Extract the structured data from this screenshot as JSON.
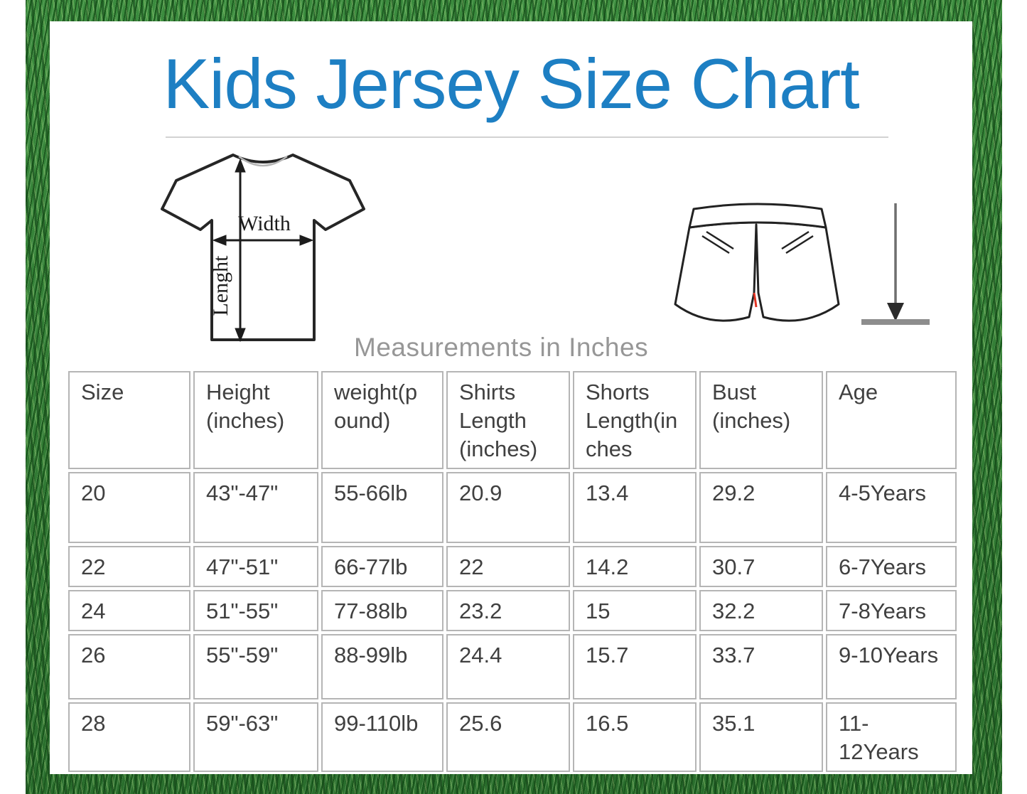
{
  "page": {
    "title": "Kids Jersey Size Chart",
    "subtitle": "Measurements in Inches"
  },
  "colors": {
    "title_blue": "#1d7fc3",
    "subtitle_gray": "#979797",
    "table_text": "#404040",
    "table_border": "#b5b5b5",
    "grass_green": "#2e7d32",
    "card_background": "#ffffff"
  },
  "diagram": {
    "shirt": {
      "icon": "tshirt-outline-icon",
      "width_label": "Width",
      "length_label": "Lenght"
    },
    "shorts": {
      "icon": "shorts-outline-icon"
    },
    "measure": {
      "icon": "down-arrow-to-baseline-icon"
    }
  },
  "chart_data": {
    "type": "table",
    "title": "Kids Jersey Size Chart",
    "note": "Measurements in Inches",
    "columns": [
      "Size",
      "Height (inches)",
      "weight(pound)",
      "Shirts Length (inches)",
      "Shorts Length(inches",
      "Bust (inches)",
      "Age"
    ],
    "rows": [
      [
        "20",
        "43\"-47\"",
        "55-66lb",
        "20.9",
        "13.4",
        "29.2",
        "4-5Years"
      ],
      [
        "22",
        "47\"-51\"",
        "66-77lb",
        "22",
        "14.2",
        "30.7",
        "6-7Years"
      ],
      [
        "24",
        "51\"-55\"",
        "77-88lb",
        "23.2",
        "15",
        "32.2",
        "7-8Years"
      ],
      [
        "26",
        "55\"-59\"",
        "88-99lb",
        "24.4",
        "15.7",
        "33.7",
        "9-10Years"
      ],
      [
        "28",
        "59\"-63\"",
        "99-110lb",
        "25.6",
        "16.5",
        "35.1",
        "11-12Years"
      ]
    ]
  }
}
